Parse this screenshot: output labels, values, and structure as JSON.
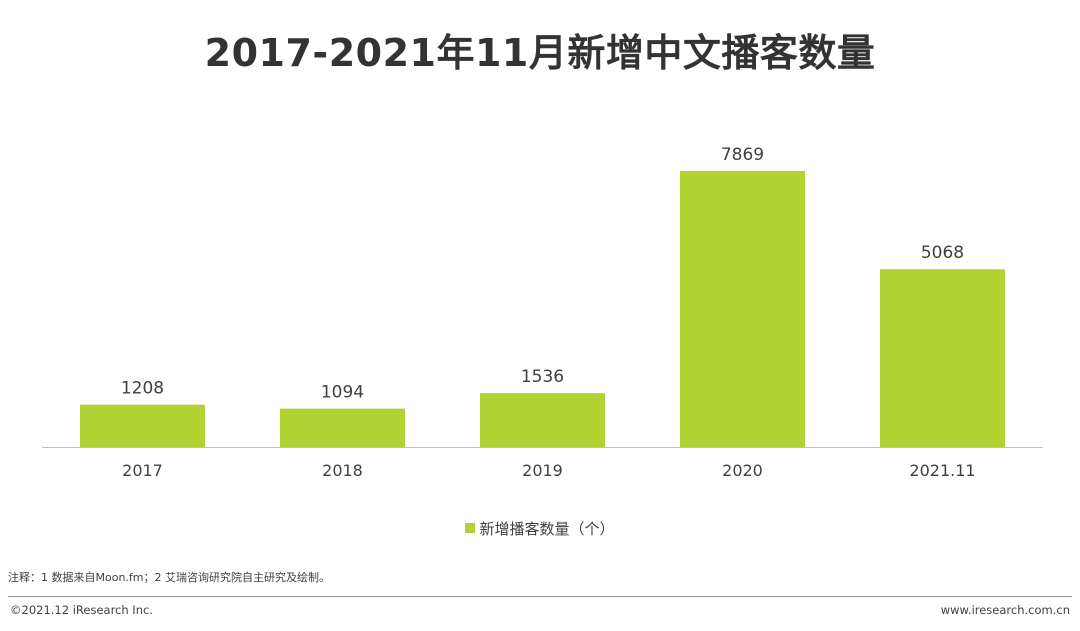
{
  "title": "2017-2021年11月新增中文播客数量",
  "legend": {
    "label": "新增播客数量（个）"
  },
  "note": "注释：1 数据来自Moon.fm；2 艾瑞咨询研究院自主研究及绘制。",
  "footer": {
    "copyright": "©2021.12 iResearch Inc.",
    "website": "www.iresearch.com.cn"
  },
  "colors": {
    "bar": "#B2D234",
    "axis": "#BFBFBF",
    "text": "#404040"
  },
  "chart_data": {
    "type": "bar",
    "title": "2017-2021年11月新增中文播客数量",
    "categories": [
      "2017",
      "2018",
      "2019",
      "2020",
      "2021.11"
    ],
    "series": [
      {
        "name": "新增播客数量（个）",
        "values": [
          1208,
          1094,
          1536,
          7869,
          5068
        ]
      }
    ],
    "xlabel": "",
    "ylabel": "",
    "ylim": [
      0,
      7869
    ],
    "grid": false,
    "legend_position": "bottom",
    "data_labels": true
  }
}
